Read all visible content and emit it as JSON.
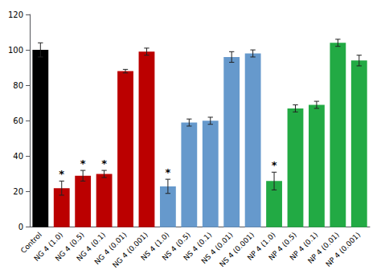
{
  "chart_data": {
    "type": "bar",
    "categories": [
      "Control",
      "NG 4 (1.0)",
      "NG 4 (0.5)",
      "NG 4 (0.1)",
      "NG 4 (0.01)",
      "NG 4 (0.001)",
      "NS 4 (1.0)",
      "NS 4 (0.5)",
      "NS 4 (0.1)",
      "NS 4 (0.01)",
      "NS 4 (0.001)",
      "NP 4 (1.0)",
      "NP 4 (0.5)",
      "NP 4 (0.1)",
      "NP 4 (0.01)",
      "NP 4 (0.001)"
    ],
    "values": [
      100,
      22,
      29,
      30,
      88,
      99,
      23,
      59,
      60,
      96,
      98,
      26,
      67,
      69,
      104,
      94
    ],
    "errors": [
      4,
      4,
      3,
      2,
      1,
      2,
      4,
      2,
      2,
      3,
      2,
      5,
      2,
      2,
      2,
      3
    ],
    "colors": [
      "#000000",
      "#bb0000",
      "#bb0000",
      "#bb0000",
      "#bb0000",
      "#bb0000",
      "#6699cc",
      "#6699cc",
      "#6699cc",
      "#6699cc",
      "#6699cc",
      "#22aa44",
      "#22aa44",
      "#22aa44",
      "#22aa44",
      "#22aa44"
    ],
    "annotations": [
      {
        "text": "*",
        "x": "NG 4 (1.0)"
      },
      {
        "text": "*",
        "x": "NG 4 (0.5)"
      },
      {
        "text": "*",
        "x": "NG 4 (0.1)"
      },
      {
        "text": "*",
        "x": "NS 4 (1.0)"
      },
      {
        "text": "*",
        "x": "NP 4 (1.0)"
      }
    ],
    "ylim": [
      0,
      120
    ],
    "yticks": [
      0,
      20,
      40,
      60,
      80,
      100,
      120
    ],
    "grid": false
  }
}
